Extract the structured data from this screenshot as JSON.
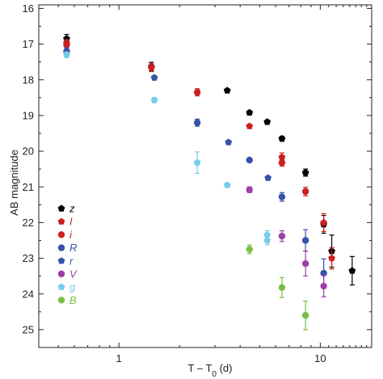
{
  "chart_data": {
    "type": "scatter",
    "xlabel": "T – T",
    "xlabel_sub": "0",
    "xlabel_unit": " (d)",
    "ylabel": "AB magnitude",
    "x_scale": "log",
    "xlim": [
      0.4,
      18
    ],
    "ylim": [
      25.5,
      16
    ],
    "y_inverted": true,
    "x_ticks": [
      {
        "value": 1,
        "label": "1"
      },
      {
        "value": 10,
        "label": "10"
      }
    ],
    "y_ticks": [
      {
        "value": 16,
        "label": "16"
      },
      {
        "value": 17,
        "label": "17"
      },
      {
        "value": 18,
        "label": "18"
      },
      {
        "value": 19,
        "label": "19"
      },
      {
        "value": 20,
        "label": "20"
      },
      {
        "value": 21,
        "label": "21"
      },
      {
        "value": 22,
        "label": "22"
      },
      {
        "value": 23,
        "label": "23"
      },
      {
        "value": 24,
        "label": "24"
      },
      {
        "value": 25,
        "label": "25"
      }
    ],
    "legend_position": "lower-left",
    "series": [
      {
        "name": "z",
        "color": "#000000",
        "marker": "pentagon",
        "points": [
          {
            "x": 0.55,
            "y": 16.85,
            "err": 0.12
          },
          {
            "x": 1.45,
            "y": 17.63,
            "err": 0.12
          },
          {
            "x": 3.45,
            "y": 18.3,
            "err": 0.05
          },
          {
            "x": 4.45,
            "y": 18.92,
            "err": 0.05
          },
          {
            "x": 5.45,
            "y": 19.18,
            "err": 0.05
          },
          {
            "x": 6.45,
            "y": 19.65,
            "err": 0.07
          },
          {
            "x": 8.45,
            "y": 20.6,
            "err": 0.1
          },
          {
            "x": 10.4,
            "y": 22.05,
            "err": 0.25
          },
          {
            "x": 11.4,
            "y": 22.8,
            "err": 0.45
          },
          {
            "x": 14.4,
            "y": 23.35,
            "err": 0.4
          }
        ]
      },
      {
        "name": "I",
        "color": "#cc1f1f",
        "marker": "pentagon",
        "points": [
          {
            "x": 0.55,
            "y": 16.97,
            "err": 0.1
          },
          {
            "x": 4.45,
            "y": 19.3,
            "err": 0.04
          },
          {
            "x": 6.45,
            "y": 20.17,
            "err": 0.12
          },
          {
            "x": 10.4,
            "y": 22.0,
            "err": 0.25
          },
          {
            "x": 11.4,
            "y": 23.0,
            "err": 0.3
          }
        ]
      },
      {
        "name": "i",
        "color": "#cc1f1f",
        "marker": "circle",
        "points": [
          {
            "x": 0.55,
            "y": 17.02,
            "err": 0.1
          },
          {
            "x": 1.45,
            "y": 17.65,
            "err": 0.12
          },
          {
            "x": 2.45,
            "y": 18.35,
            "err": 0.1
          },
          {
            "x": 6.45,
            "y": 20.32,
            "err": 0.1
          },
          {
            "x": 8.45,
            "y": 21.13,
            "err": 0.12
          }
        ]
      },
      {
        "name": "R",
        "color": "#3553a7",
        "marker": "circle",
        "points": [
          {
            "x": 0.55,
            "y": 17.2,
            "err": 0.1
          },
          {
            "x": 2.45,
            "y": 19.2,
            "err": 0.1
          },
          {
            "x": 4.45,
            "y": 20.25,
            "err": 0.05
          },
          {
            "x": 6.45,
            "y": 21.28,
            "err": 0.12
          },
          {
            "x": 8.45,
            "y": 22.5,
            "err": 0.3
          },
          {
            "x": 10.4,
            "y": 23.42,
            "err": 0.4
          }
        ]
      },
      {
        "name": "r",
        "color": "#3553a7",
        "marker": "pentagon",
        "points": [
          {
            "x": 1.5,
            "y": 17.94,
            "err": 0.05
          },
          {
            "x": 3.5,
            "y": 19.75,
            "err": 0.05
          },
          {
            "x": 5.5,
            "y": 20.75,
            "err": 0.05
          }
        ]
      },
      {
        "name": "V",
        "color": "#9e3fa8",
        "marker": "circle",
        "points": [
          {
            "x": 4.45,
            "y": 21.08,
            "err": 0.08
          },
          {
            "x": 6.45,
            "y": 22.38,
            "err": 0.15
          },
          {
            "x": 8.45,
            "y": 23.15,
            "err": 0.35
          },
          {
            "x": 10.4,
            "y": 23.78,
            "err": 0.3
          }
        ]
      },
      {
        "name": "g",
        "color": "#78cde6",
        "marker": "pentagon",
        "points": [
          {
            "x": 0.55,
            "y": 17.3,
            "err": 0.08
          },
          {
            "x": 1.5,
            "y": 18.57,
            "err": 0.07
          },
          {
            "x": 2.45,
            "y": 20.32,
            "err": 0.3
          },
          {
            "x": 3.45,
            "y": 20.95,
            "err": 0.05
          },
          {
            "x": 5.45,
            "y": 22.35,
            "err": 0.12
          },
          {
            "x": 5.45,
            "y": 22.5,
            "err": 0.12
          }
        ]
      },
      {
        "name": "B",
        "color": "#79bf46",
        "marker": "circle",
        "points": [
          {
            "x": 4.45,
            "y": 22.75,
            "err": 0.12
          },
          {
            "x": 6.45,
            "y": 23.82,
            "err": 0.28
          },
          {
            "x": 8.45,
            "y": 24.6,
            "err": 0.4
          }
        ]
      }
    ]
  }
}
